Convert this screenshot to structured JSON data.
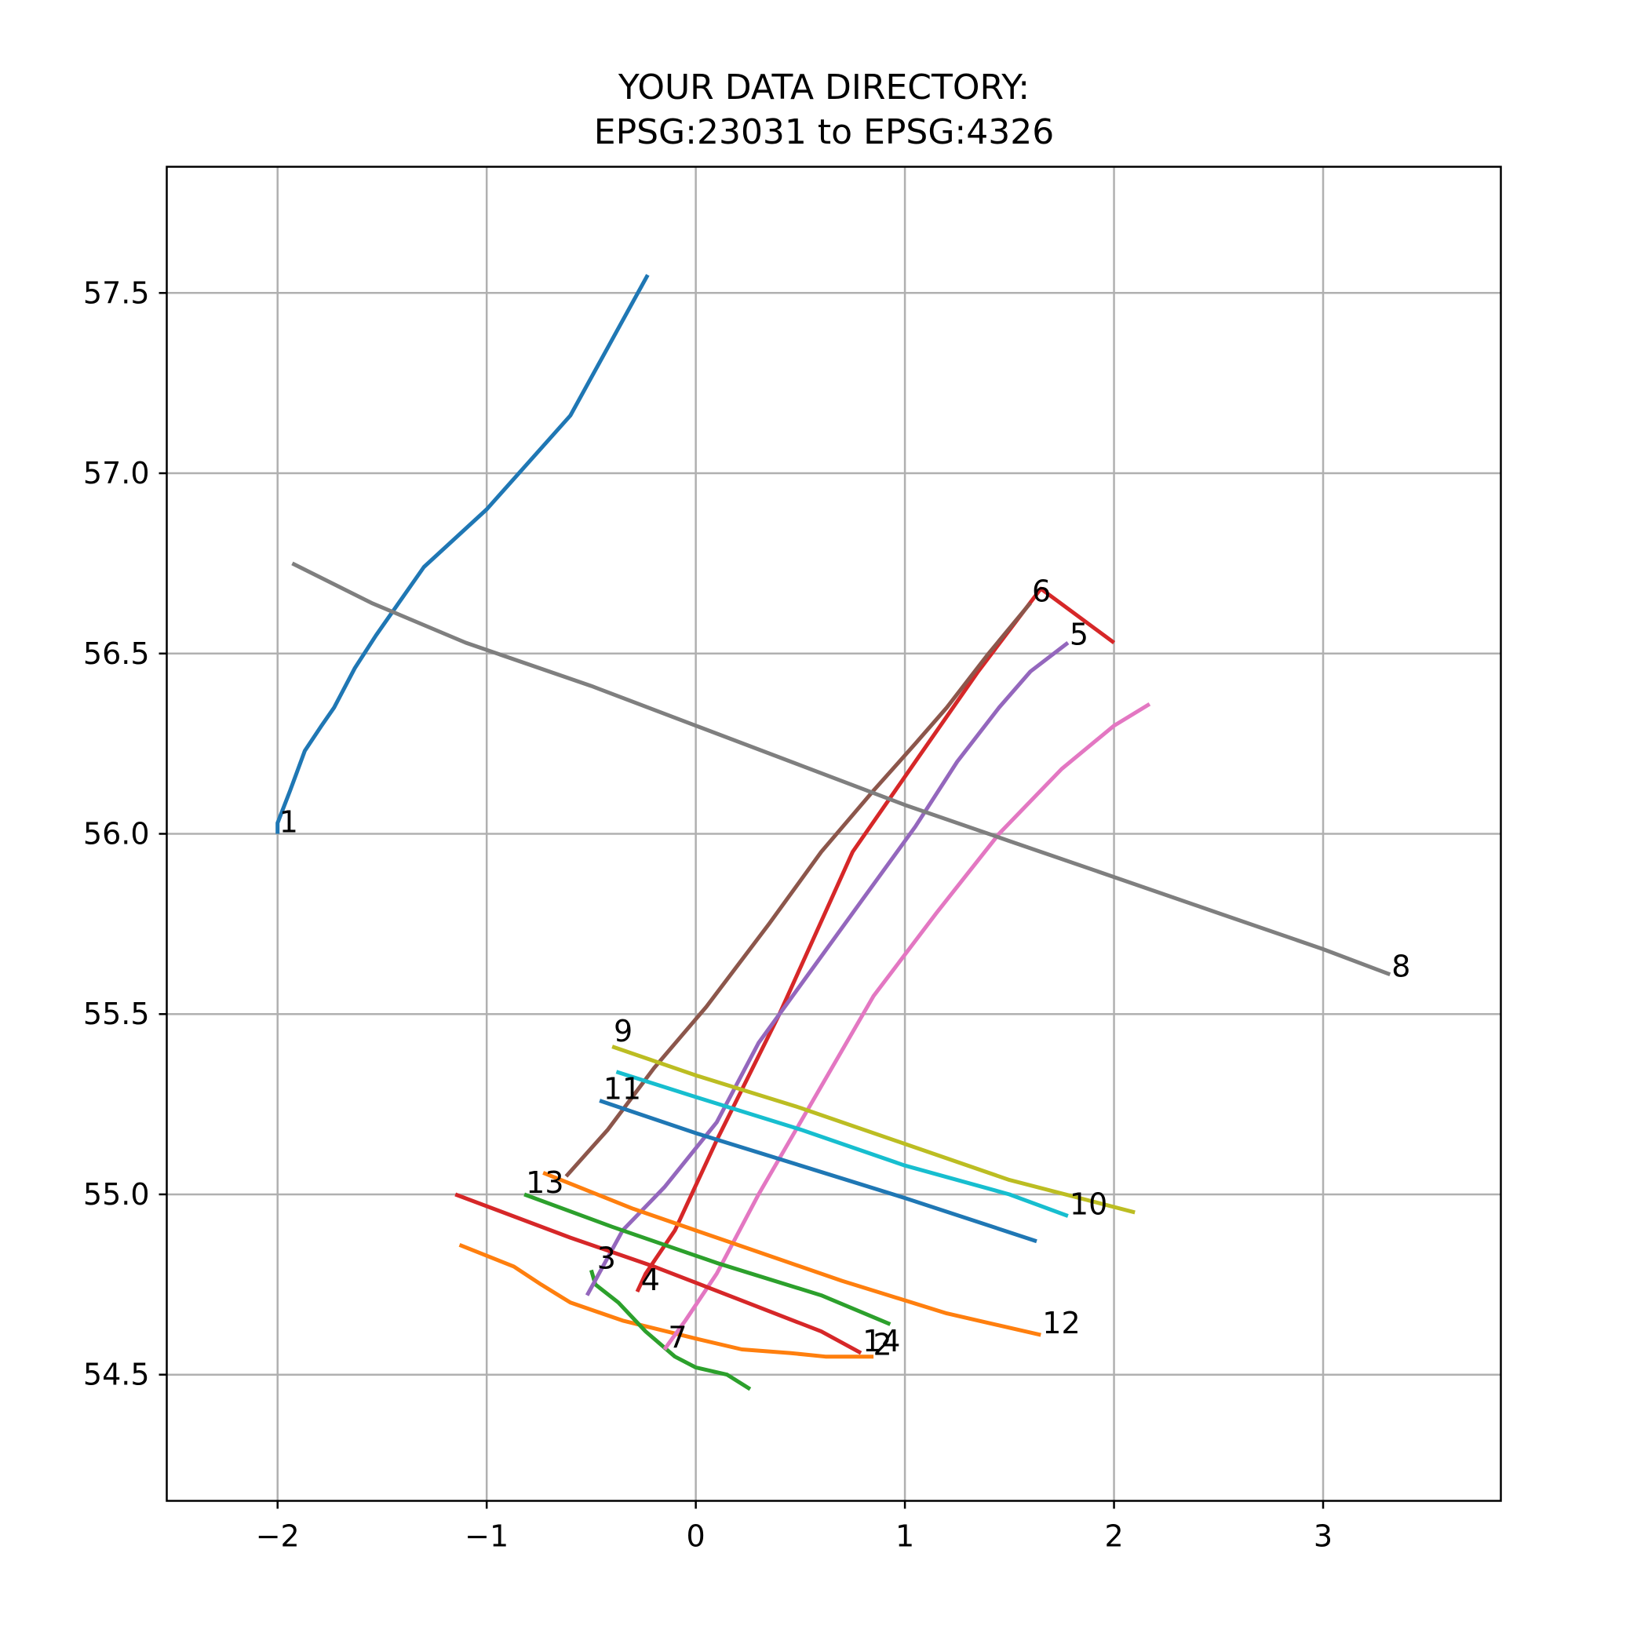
{
  "chart_data": {
    "type": "line",
    "title": [
      "YOUR DATA DIRECTORY:",
      "EPSG:23031 to EPSG:4326"
    ],
    "xlabel": "",
    "ylabel": "",
    "xlim": [
      -2.53,
      3.85
    ],
    "ylim": [
      54.15,
      57.85
    ],
    "xticks": [
      -2,
      -1,
      0,
      1,
      2,
      3
    ],
    "xtick_labels": [
      "−2",
      "−1",
      "0",
      "1",
      "2",
      "3"
    ],
    "yticks": [
      54.5,
      55.0,
      55.5,
      56.0,
      56.5,
      57.0,
      57.5
    ],
    "ytick_labels": [
      "54.5",
      "55.0",
      "55.5",
      "56.0",
      "56.5",
      "57.0",
      "57.5"
    ],
    "grid": true,
    "series": [
      {
        "label": "1",
        "color": "#1f77b4",
        "label_at": [
          -2.0,
          56.0
        ],
        "points": [
          [
            -2.0,
            56.0
          ],
          [
            -2.0,
            56.03
          ],
          [
            -1.94,
            56.12
          ],
          [
            -1.87,
            56.23
          ],
          [
            -1.79,
            56.3
          ],
          [
            -1.73,
            56.35
          ],
          [
            -1.63,
            56.46
          ],
          [
            -1.53,
            56.55
          ],
          [
            -1.3,
            56.74
          ],
          [
            -1.0,
            56.9
          ],
          [
            -0.6,
            57.16
          ],
          [
            -0.23,
            57.55
          ]
        ]
      },
      {
        "label": "2",
        "color": "#ff7f0e",
        "label_at": [
          0.84,
          54.55
        ],
        "points": [
          [
            -1.13,
            54.86
          ],
          [
            -0.87,
            54.8
          ],
          [
            -0.74,
            54.75
          ],
          [
            -0.6,
            54.7
          ],
          [
            -0.35,
            54.65
          ],
          [
            0.0,
            54.6
          ],
          [
            0.22,
            54.57
          ],
          [
            0.45,
            54.56
          ],
          [
            0.62,
            54.55
          ],
          [
            0.85,
            54.55
          ]
        ]
      },
      {
        "label": "3",
        "color": "#2ca02c",
        "label_at": [
          -0.48,
          54.79
        ],
        "points": [
          [
            -0.5,
            54.79
          ],
          [
            -0.48,
            54.75
          ],
          [
            -0.37,
            54.7
          ],
          [
            -0.24,
            54.62
          ],
          [
            -0.1,
            54.55
          ],
          [
            0.0,
            54.52
          ],
          [
            0.15,
            54.5
          ],
          [
            0.26,
            54.46
          ]
        ]
      },
      {
        "label": "4",
        "color": "#d62728",
        "label_at": [
          -0.27,
          54.73
        ],
        "points": [
          [
            -0.28,
            54.73
          ],
          [
            -0.24,
            54.78
          ],
          [
            -0.1,
            54.9
          ],
          [
            0.1,
            55.15
          ],
          [
            0.4,
            55.5
          ],
          [
            0.75,
            55.95
          ],
          [
            1.05,
            56.2
          ],
          [
            1.35,
            56.45
          ],
          [
            1.65,
            56.68
          ],
          [
            2.0,
            56.53
          ]
        ]
      },
      {
        "label": "5",
        "color": "#9467bd",
        "label_at": [
          1.78,
          56.52
        ],
        "points": [
          [
            -0.52,
            54.72
          ],
          [
            -0.35,
            54.9
          ],
          [
            -0.15,
            55.02
          ],
          [
            0.1,
            55.2
          ],
          [
            0.3,
            55.42
          ],
          [
            0.5,
            55.58
          ],
          [
            0.8,
            55.82
          ],
          [
            1.05,
            56.02
          ],
          [
            1.25,
            56.2
          ],
          [
            1.45,
            56.35
          ],
          [
            1.6,
            56.45
          ],
          [
            1.78,
            56.53
          ]
        ]
      },
      {
        "label": "6",
        "color": "#8c564b",
        "label_at": [
          1.6,
          56.64
        ],
        "points": [
          [
            -0.62,
            55.05
          ],
          [
            -0.42,
            55.18
          ],
          [
            -0.2,
            55.35
          ],
          [
            0.05,
            55.52
          ],
          [
            0.35,
            55.75
          ],
          [
            0.6,
            55.95
          ],
          [
            0.85,
            56.12
          ],
          [
            1.05,
            56.25
          ],
          [
            1.2,
            56.35
          ],
          [
            1.4,
            56.5
          ],
          [
            1.6,
            56.64
          ]
        ]
      },
      {
        "label": "7",
        "color": "#e377c2",
        "label_at": [
          -0.14,
          54.57
        ],
        "points": [
          [
            -0.15,
            54.57
          ],
          [
            -0.05,
            54.65
          ],
          [
            0.1,
            54.78
          ],
          [
            0.3,
            55.0
          ],
          [
            0.55,
            55.25
          ],
          [
            0.85,
            55.55
          ],
          [
            1.15,
            55.78
          ],
          [
            1.45,
            56.0
          ],
          [
            1.75,
            56.18
          ],
          [
            2.0,
            56.3
          ],
          [
            2.17,
            56.36
          ]
        ]
      },
      {
        "label": "8",
        "color": "#7f7f7f",
        "label_at": [
          3.32,
          55.6
        ],
        "points": [
          [
            -1.93,
            56.75
          ],
          [
            -1.55,
            56.64
          ],
          [
            -1.1,
            56.53
          ],
          [
            -0.5,
            56.41
          ],
          [
            0.0,
            56.3
          ],
          [
            0.5,
            56.19
          ],
          [
            1.0,
            56.08
          ],
          [
            1.5,
            55.98
          ],
          [
            2.0,
            55.88
          ],
          [
            2.5,
            55.78
          ],
          [
            3.0,
            55.68
          ],
          [
            3.32,
            55.61
          ]
        ]
      },
      {
        "label": "9",
        "color": "#bcbd22",
        "label_at": [
          -0.4,
          55.42
        ],
        "points": [
          [
            -0.4,
            55.41
          ],
          [
            0.0,
            55.33
          ],
          [
            0.5,
            55.24
          ],
          [
            1.0,
            55.14
          ],
          [
            1.5,
            55.04
          ],
          [
            2.1,
            54.95
          ]
        ]
      },
      {
        "label": "10",
        "color": "#17becf",
        "label_at": [
          1.78,
          54.94
        ],
        "points": [
          [
            -0.38,
            55.34
          ],
          [
            0.0,
            55.27
          ],
          [
            0.5,
            55.18
          ],
          [
            1.0,
            55.08
          ],
          [
            1.5,
            55.0
          ],
          [
            1.78,
            54.94
          ]
        ]
      },
      {
        "label": "11",
        "color": "#1f77b4",
        "label_at": [
          -0.45,
          55.26
        ],
        "points": [
          [
            -0.46,
            55.26
          ],
          [
            0.0,
            55.17
          ],
          [
            0.5,
            55.08
          ],
          [
            1.0,
            54.99
          ],
          [
            1.63,
            54.87
          ]
        ]
      },
      {
        "label": "12",
        "color": "#ff7f0e",
        "label_at": [
          1.65,
          54.61
        ],
        "points": [
          [
            -0.73,
            55.06
          ],
          [
            -0.3,
            54.96
          ],
          [
            0.2,
            54.86
          ],
          [
            0.7,
            54.76
          ],
          [
            1.2,
            54.67
          ],
          [
            1.65,
            54.61
          ]
        ]
      },
      {
        "label": "13",
        "color": "#2ca02c",
        "label_at": [
          -0.82,
          55.0
        ],
        "points": [
          [
            -0.82,
            55.0
          ],
          [
            -0.4,
            54.91
          ],
          [
            0.1,
            54.81
          ],
          [
            0.6,
            54.72
          ],
          [
            0.93,
            54.64
          ]
        ]
      },
      {
        "label": "14",
        "color": "#d62728",
        "label_at": [
          0.79,
          54.56
        ],
        "points": [
          [
            -1.15,
            55.0
          ],
          [
            -0.6,
            54.88
          ],
          [
            -0.2,
            54.8
          ],
          [
            0.2,
            54.71
          ],
          [
            0.6,
            54.62
          ],
          [
            0.79,
            54.56
          ]
        ]
      }
    ]
  }
}
